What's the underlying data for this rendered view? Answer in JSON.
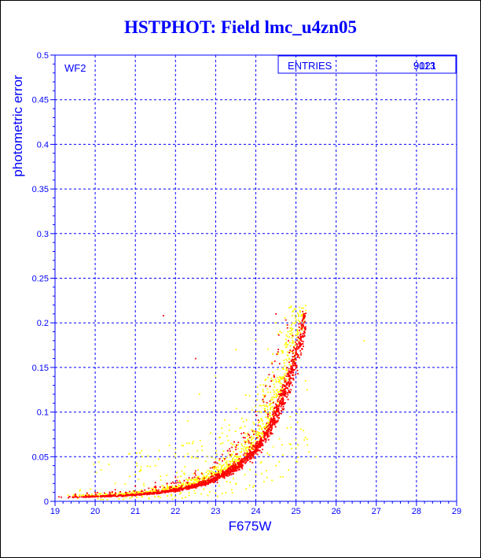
{
  "title": "HSTPHOT: Field lmc_u4zn05",
  "chart_data": {
    "type": "scatter",
    "title": "HSTPHOT: Field lmc_u4zn05",
    "xlabel": "F675W",
    "ylabel": "photometric error",
    "xlim": [
      19,
      29
    ],
    "ylim": [
      0,
      0.5
    ],
    "x_ticks": [
      "19",
      "20",
      "21",
      "22",
      "23",
      "24",
      "25",
      "26",
      "27",
      "28",
      "29"
    ],
    "y_ticks": [
      "0",
      "0.05",
      "0.1",
      "0.15",
      "0.2",
      "0.25",
      "0.3",
      "0.35",
      "0.4",
      "0.45",
      "0.5"
    ],
    "grid": true,
    "panel_label": "WF2",
    "stats": {
      "label": "ENTRIES",
      "value_a": "9021",
      "value_b": "9113"
    },
    "series": [
      {
        "color": "#ff0000",
        "sample_points": [
          [
            19.1,
            0.005
          ],
          [
            19.5,
            0.007
          ],
          [
            20.0,
            0.01
          ],
          [
            20.5,
            0.013
          ],
          [
            21.0,
            0.017
          ],
          [
            21.5,
            0.021
          ],
          [
            22.0,
            0.027
          ],
          [
            22.5,
            0.034
          ],
          [
            23.0,
            0.044
          ],
          [
            23.5,
            0.058
          ],
          [
            24.0,
            0.078
          ],
          [
            24.3,
            0.095
          ],
          [
            24.6,
            0.12
          ],
          [
            24.8,
            0.14
          ],
          [
            25.0,
            0.17
          ],
          [
            25.2,
            0.2
          ],
          [
            21.7,
            0.208
          ],
          [
            22.5,
            0.16
          ],
          [
            24.5,
            0.21
          ]
        ]
      },
      {
        "color": "#ffff00",
        "sample_points": [
          [
            20.5,
            0.02
          ],
          [
            21.0,
            0.03
          ],
          [
            21.5,
            0.04
          ],
          [
            22.0,
            0.05
          ],
          [
            22.3,
            0.09
          ],
          [
            22.6,
            0.12
          ],
          [
            23.0,
            0.14
          ],
          [
            23.5,
            0.17
          ],
          [
            24.0,
            0.18
          ],
          [
            24.5,
            0.2
          ],
          [
            23.5,
            0.02
          ],
          [
            24.0,
            0.03
          ],
          [
            24.5,
            0.04
          ],
          [
            25.0,
            0.06
          ],
          [
            25.5,
            0.05
          ],
          [
            26.0,
            0.1
          ],
          [
            26.7,
            0.18
          ],
          [
            24.8,
            0.19
          ],
          [
            22.0,
            0.005
          ]
        ]
      }
    ]
  }
}
